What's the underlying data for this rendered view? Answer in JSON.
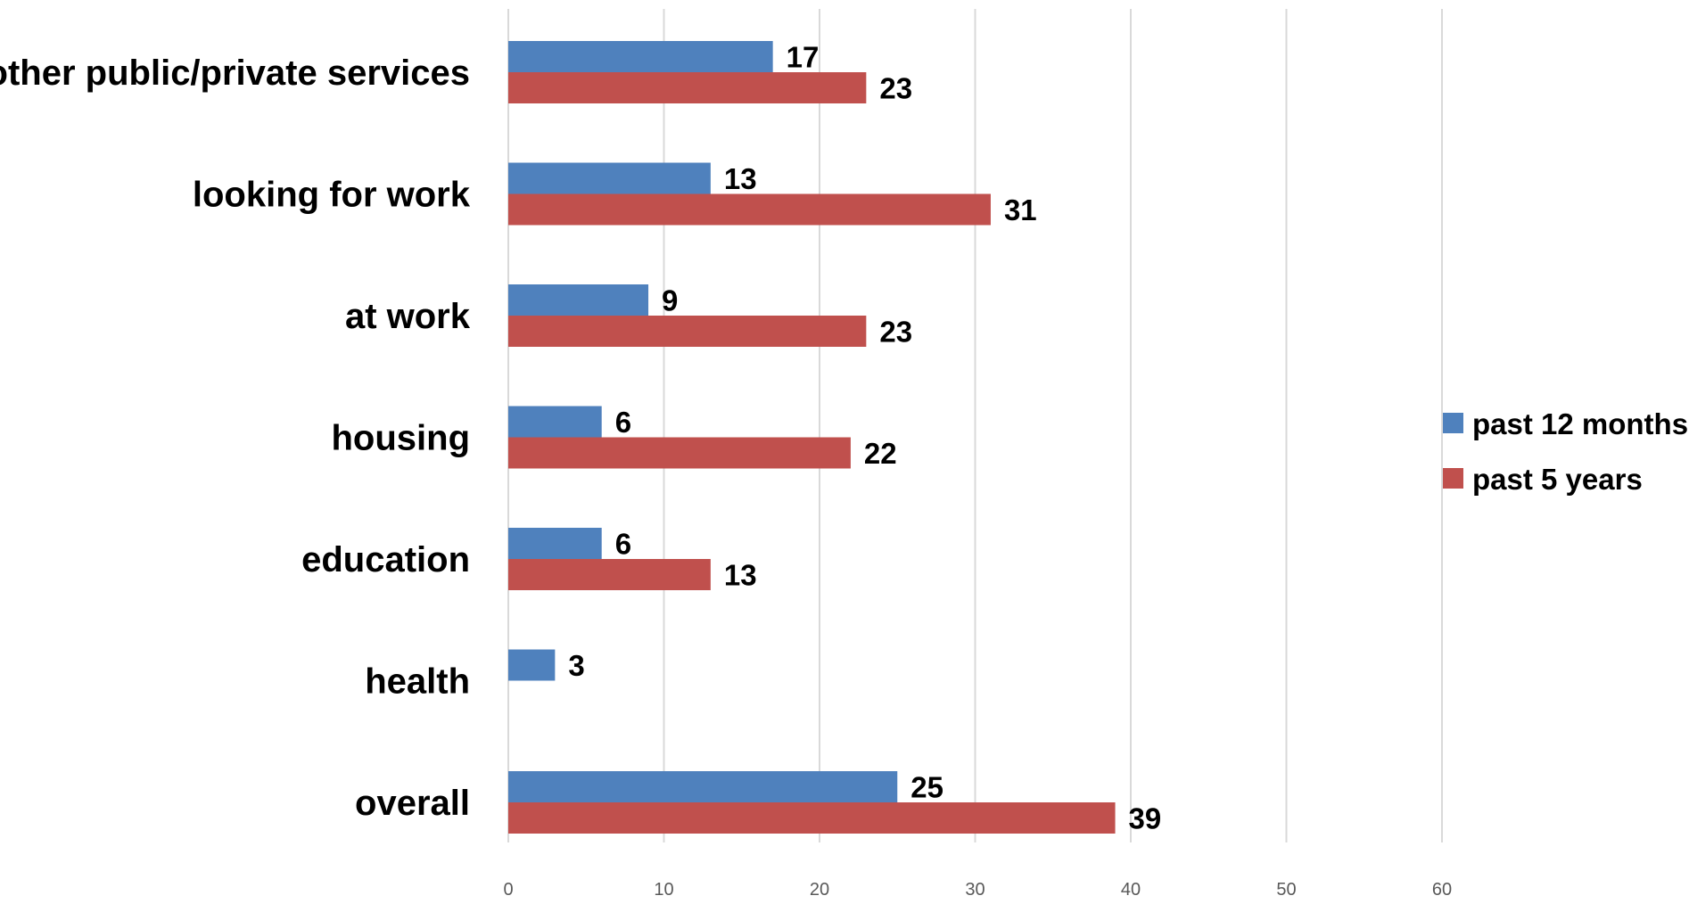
{
  "chart_data": {
    "type": "bar",
    "orientation": "horizontal",
    "categories": [
      "other public/private services",
      "looking for work",
      "at work",
      "housing",
      "education",
      "health",
      "overall"
    ],
    "series": [
      {
        "name": "past 12 months",
        "color": "#4f81bd",
        "values": [
          17,
          13,
          9,
          6,
          6,
          3,
          25
        ],
        "labels": [
          "17",
          "13",
          "9",
          "6",
          "6",
          "3",
          "25"
        ]
      },
      {
        "name": "past 5 years",
        "color": "#c0504d",
        "values": [
          23,
          31,
          23,
          22,
          13,
          null,
          39
        ],
        "labels": [
          "23",
          "31",
          "23",
          "22",
          "13",
          "",
          "39"
        ]
      }
    ],
    "xticks": [
      "0",
      "10",
      "20",
      "30",
      "40",
      "50",
      "60"
    ],
    "xlim": [
      0,
      60
    ],
    "grid": true,
    "legend_position": "right",
    "title": "",
    "xlabel": "",
    "ylabel": ""
  }
}
